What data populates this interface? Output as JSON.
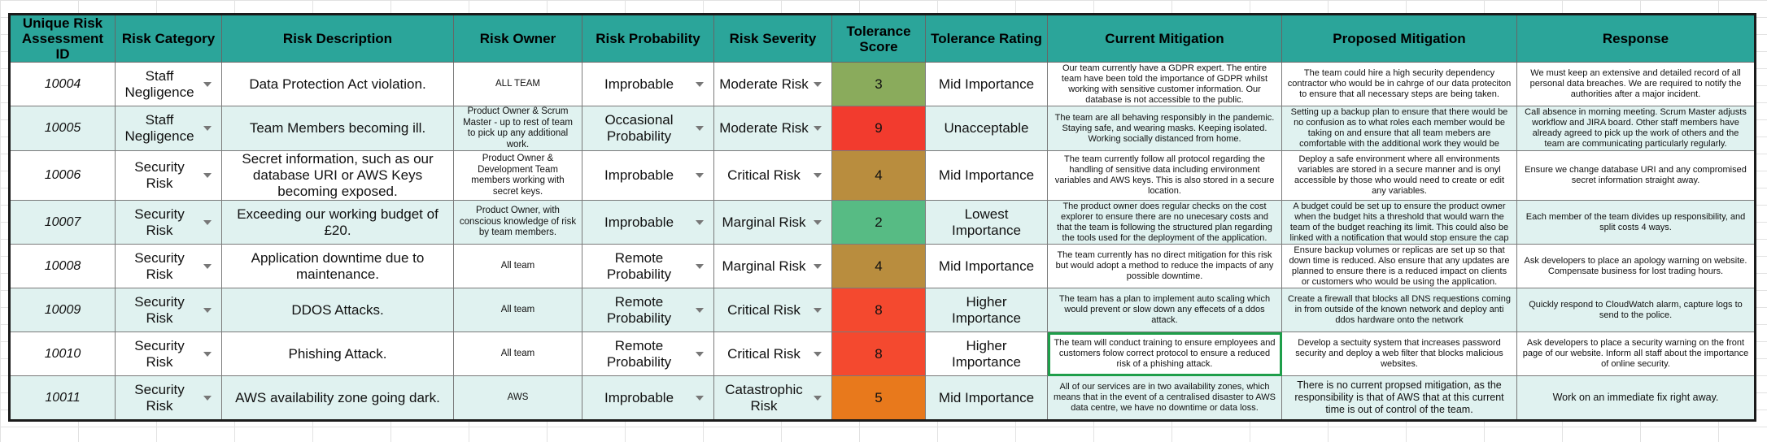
{
  "headers": [
    "Unique Risk Assessment ID",
    "Risk Category",
    "Risk Description",
    "Risk Owner",
    "Risk Probability",
    "Risk Severity",
    "Tolerance Score",
    "Tolerance Rating",
    "Current Mitigation",
    "Proposed Mitigation",
    "Response"
  ],
  "colors": {
    "header": "#2ba59a",
    "alt_row": "#e0f2f0",
    "selected_outline": "#1e9e4a"
  },
  "rows": [
    {
      "id": "10004",
      "category": "Staff Negligence",
      "description": "Data Protection Act violation.",
      "owner": "ALL TEAM",
      "probability": "Improbable",
      "severity": "Moderate Risk",
      "score": "3",
      "score_color": "#8aab5c",
      "rating": "Mid Importance",
      "current": "Our team currently have a GDPR expert. The entire team have been told the importance of GDPR whilst working with sensitive customer information. Our database is not accessible to the public.",
      "proposed": "The team could hire a high security dependency contractor who would be in cahrge of our data proteciton to ensure that all necessary steps are being taken.",
      "response": "We must keep an extensive and detailed record of all personal data breaches. We are required to notify the authorities after a major incident."
    },
    {
      "id": "10005",
      "category": "Staff Negligence",
      "description": "Team Members becoming ill.",
      "owner": "Product Owner & Scrum Master - up to rest of team to pick up any additional work.",
      "probability": "Occasional Probability",
      "severity": "Moderate Risk",
      "score": "9",
      "score_color": "#f23b2e",
      "rating": "Unacceptable",
      "current": "The team are all behaving responsibly in the pandemic. Staying safe, and wearing masks. Keeping isolated. Working socially distanced from home.",
      "proposed": "Setting up a backup plan to ensure that there would be no confusion as to what roles each member would be taking on and ensure that all team mebers are comfortable with the additional work they would be",
      "response": "Call absence in morning meeting. Scrum Master adjusts workflow and JIRA board. Other staff members have already agreed to pick up the work of others and the team are communicating particularly regularly."
    },
    {
      "id": "10006",
      "category": "Security Risk",
      "description": "Secret information, such as our database URI or AWS Keys becoming exposed.",
      "owner": "Product Owner & Development Team members working with secret keys.",
      "probability": "Improbable",
      "severity": "Critical Risk",
      "score": "4",
      "score_color": "#b98d3e",
      "rating": "Mid Importance",
      "current": "The team currently follow all protocol regarding the handling of sensitive data including environment variables and AWS keys. This is also stored in a secure location.",
      "proposed": "Deploy a safe environment where all environments variables are stored in a secure manner and is onyl accessible by those who would need to create or edit any variables.",
      "response": "Ensure we change database URI and any compromised secret information straight away."
    },
    {
      "id": "10007",
      "category": "Security Risk",
      "description": "Exceeding our working budget of £20.",
      "owner": "Product Owner, with conscious knowledge of risk by team members.",
      "probability": "Improbable",
      "severity": "Marginal Risk",
      "score": "2",
      "score_color": "#57bb84",
      "rating": "Lowest Importance",
      "current": "The product owner does regular checks on the cost explorer to ensure there are no unecesary costs and that the team is following the structured plan regarding the tools used for the deployment of the application.",
      "proposed": "A budget could be set up to ensure the product owner when the budget hits a threshold that would warn the team of the budget reaching its limit. This could also be linked with  a notification that would stop ensure the cap",
      "response": "Each member of the team divides up responsibility, and split costs 4 ways."
    },
    {
      "id": "10008",
      "category": "Security Risk",
      "description": "Application downtime due to maintenance.",
      "owner": "All team",
      "probability": "Remote Probability",
      "severity": "Marginal Risk",
      "score": "4",
      "score_color": "#b98d3e",
      "rating": "Mid Importance",
      "current": "The team currently has no direct mitigation for this risk but would adopt a method to reduce the impacts of any possible downtime.",
      "proposed": "Ensure backup volumes or replicas are set up so that down time is reduced. Also ensure that any updates are planned to ensure there is a reduced impact on clients or customers who would be using the application.",
      "response": "Ask developers to place an apology warning on website. Compensate business for lost trading hours."
    },
    {
      "id": "10009",
      "category": "Security Risk",
      "description": "DDOS Attacks.",
      "owner": "All team",
      "probability": "Remote Probability",
      "severity": "Critical Risk",
      "score": "8",
      "score_color": "#f4492f",
      "rating": "Higher Importance",
      "current": "The team has a plan to implement auto scaling which would prevent or slow down any effecets of a ddos attack.",
      "proposed": "Create a firewall that blocks all DNS requestions coming in from outside of the known network and deploy anti ddos hardware onto the network",
      "response": "Quickly respond to CloudWatch alarm, capture logs to send to the police."
    },
    {
      "id": "10010",
      "category": "Security Risk",
      "description": "Phishing Attack.",
      "owner": "All team",
      "probability": "Remote Probability",
      "severity": "Critical Risk",
      "score": "8",
      "score_color": "#f4492f",
      "rating": "Higher Importance",
      "current": "The team will conduct training to ensure employees and customers folow correct protocol to ensure a reduced risk of a phishing attack.",
      "proposed": "Develop a sectuity system that increases password security and deploy a web filter that blocks malicious websites.",
      "response": "Ask developers to place a security warning on the front page of our website. Inform all staff about the importance of online security."
    },
    {
      "id": "10011",
      "category": "Security Risk",
      "description": "AWS availability zone going dark.",
      "owner": "AWS",
      "probability": "Improbable",
      "severity": "Catastrophic Risk",
      "score": "5",
      "score_color": "#e8791c",
      "rating": "Mid Importance",
      "current": "All of our services are in two availability zones, which means that in the event of a centralised disaster to AWS data centre, we have no downtime or data loss.",
      "proposed": "There is no current propsed mitigation, as the responsibility is that of AWS that at this current time is out of control of the team.",
      "response": "Work on an immediate fix right away."
    }
  ]
}
